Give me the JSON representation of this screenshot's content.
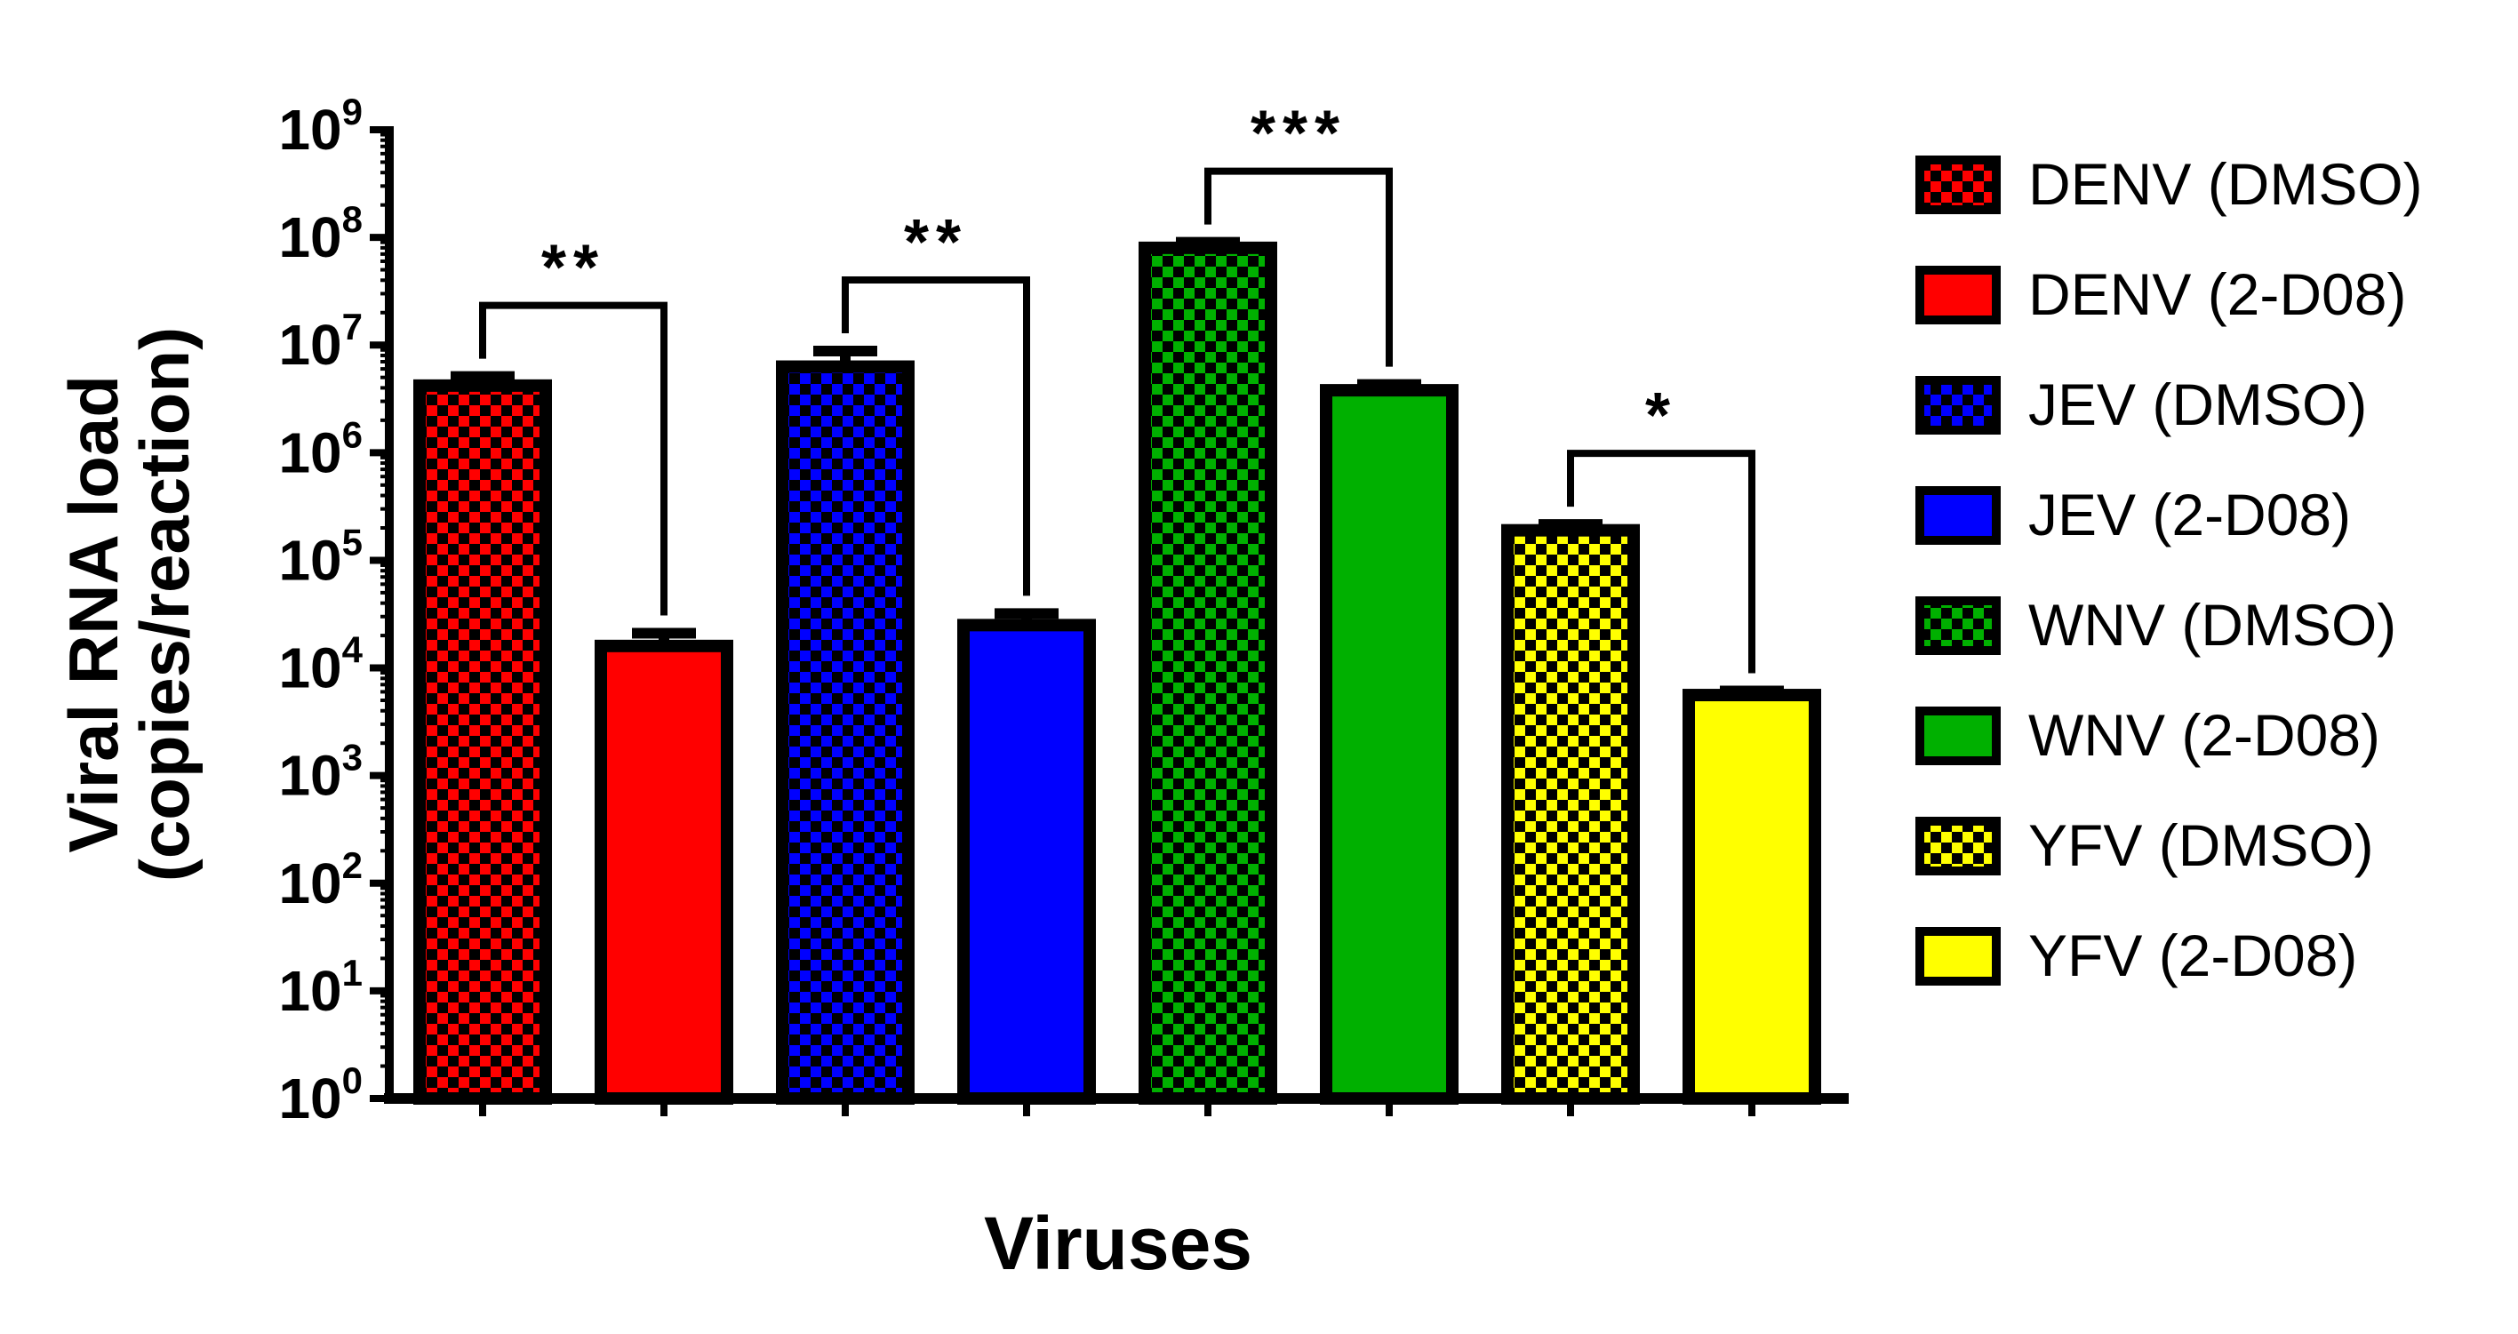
{
  "chart_data": {
    "type": "bar",
    "title": "",
    "xlabel": "Viruses",
    "ylabel_lines": [
      "Viral RNA load",
      "(copies/reaction)"
    ],
    "yscale": "log",
    "ylim": [
      1,
      1000000000
    ],
    "ytick_base": "10",
    "ytick_exponents": [
      "0",
      "1",
      "2",
      "3",
      "4",
      "5",
      "6",
      "7",
      "8",
      "9"
    ],
    "grid": false,
    "legend_position": "right",
    "categories": [
      "DENV (DMSO)",
      "DENV (2-D08)",
      "JEV (DMSO)",
      "JEV (2-D08)",
      "WNV (DMSO)",
      "WNV (2-D08)",
      "YFV (DMSO)",
      "YFV (2-D08)"
    ],
    "series": [
      {
        "name": "DENV (DMSO)",
        "value": 4200000,
        "error_high": 5100000,
        "color": "#ff0000",
        "pattern": "checkered"
      },
      {
        "name": "DENV (2-D08)",
        "value": 16000,
        "error_high": 21000,
        "color": "#ff0000",
        "pattern": "solid"
      },
      {
        "name": "JEV (DMSO)",
        "value": 6300000,
        "error_high": 8800000,
        "color": "#0000ff",
        "pattern": "checkered"
      },
      {
        "name": "JEV (2-D08)",
        "value": 25000,
        "error_high": 32000,
        "color": "#0000ff",
        "pattern": "solid"
      },
      {
        "name": "WNV (DMSO)",
        "value": 80000000,
        "error_high": 90000000,
        "color": "#00b000",
        "pattern": "checkered"
      },
      {
        "name": "WNV (2-D08)",
        "value": 3800000,
        "error_high": 4300000,
        "color": "#00b000",
        "pattern": "solid"
      },
      {
        "name": "YFV (DMSO)",
        "value": 190000,
        "error_high": 215000,
        "color": "#ffff00",
        "pattern": "checkered"
      },
      {
        "name": "YFV (2-D08)",
        "value": 5600,
        "error_high": 6100,
        "color": "#ffff00",
        "pattern": "solid"
      }
    ],
    "significance": [
      {
        "from": 0,
        "to": 1,
        "label": "**"
      },
      {
        "from": 2,
        "to": 3,
        "label": "**"
      },
      {
        "from": 4,
        "to": 5,
        "label": "***"
      },
      {
        "from": 6,
        "to": 7,
        "label": "*"
      }
    ]
  }
}
